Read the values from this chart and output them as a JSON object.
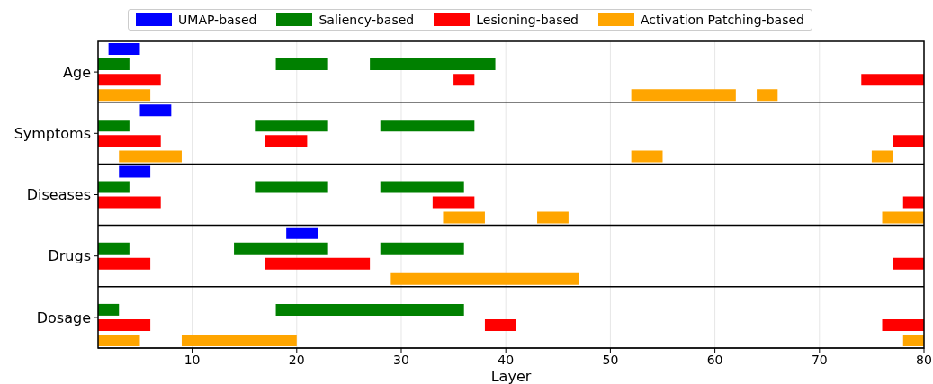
{
  "chart_data": {
    "type": "bar",
    "orientation": "horizontal",
    "xlabel": "Layer",
    "categories": [
      "Age",
      "Symptoms",
      "Diseases",
      "Drugs",
      "Dosage"
    ],
    "xlim": [
      1,
      80
    ],
    "xticks": [
      10,
      20,
      30,
      40,
      50,
      60,
      70,
      80
    ],
    "grid": "x",
    "legend": "top",
    "series": [
      {
        "name": "UMAP-based",
        "color": "#0000ff",
        "base": [
          2,
          5,
          3,
          19,
          null
        ],
        "values": [
          3,
          3,
          3,
          3,
          null
        ]
      },
      {
        "name": "Saliency-based",
        "color": "#008000",
        "base": [
          1,
          1,
          1,
          1,
          1
        ],
        "values": [
          3,
          3,
          3,
          3,
          2
        ]
      },
      {
        "color": "#008000",
        "base": [
          18,
          16,
          16,
          14,
          18
        ],
        "values": [
          5,
          7,
          7,
          9,
          18
        ]
      },
      {
        "color": "#008000",
        "base": [
          27,
          28,
          28,
          28,
          null
        ],
        "values": [
          12,
          9,
          8,
          8,
          null
        ]
      },
      {
        "name": "Lesioning-based",
        "color": "#ff0000",
        "base": [
          1,
          1,
          1,
          1,
          1
        ],
        "values": [
          6,
          6,
          6,
          5,
          5
        ]
      },
      {
        "color": "#ff0000",
        "base": [
          35,
          17,
          33,
          17,
          38
        ],
        "values": [
          2,
          4,
          4,
          10,
          3
        ]
      },
      {
        "color": "#ff0000",
        "base": [
          74,
          77,
          78,
          77,
          76
        ],
        "values": [
          6,
          3,
          2,
          3,
          4
        ]
      },
      {
        "name": "Activation Patching-based",
        "color": "#ffa500",
        "base": [
          1,
          3,
          34,
          29,
          1
        ],
        "values": [
          5,
          6,
          4,
          18,
          4
        ]
      },
      {
        "color": "#ffa500",
        "base": [
          52,
          52,
          43,
          null,
          9
        ],
        "values": [
          10,
          3,
          3,
          null,
          11
        ]
      },
      {
        "color": "#ffa500",
        "base": [
          64,
          75,
          76,
          null,
          78
        ],
        "values": [
          2,
          2,
          4,
          null,
          2
        ]
      }
    ]
  }
}
